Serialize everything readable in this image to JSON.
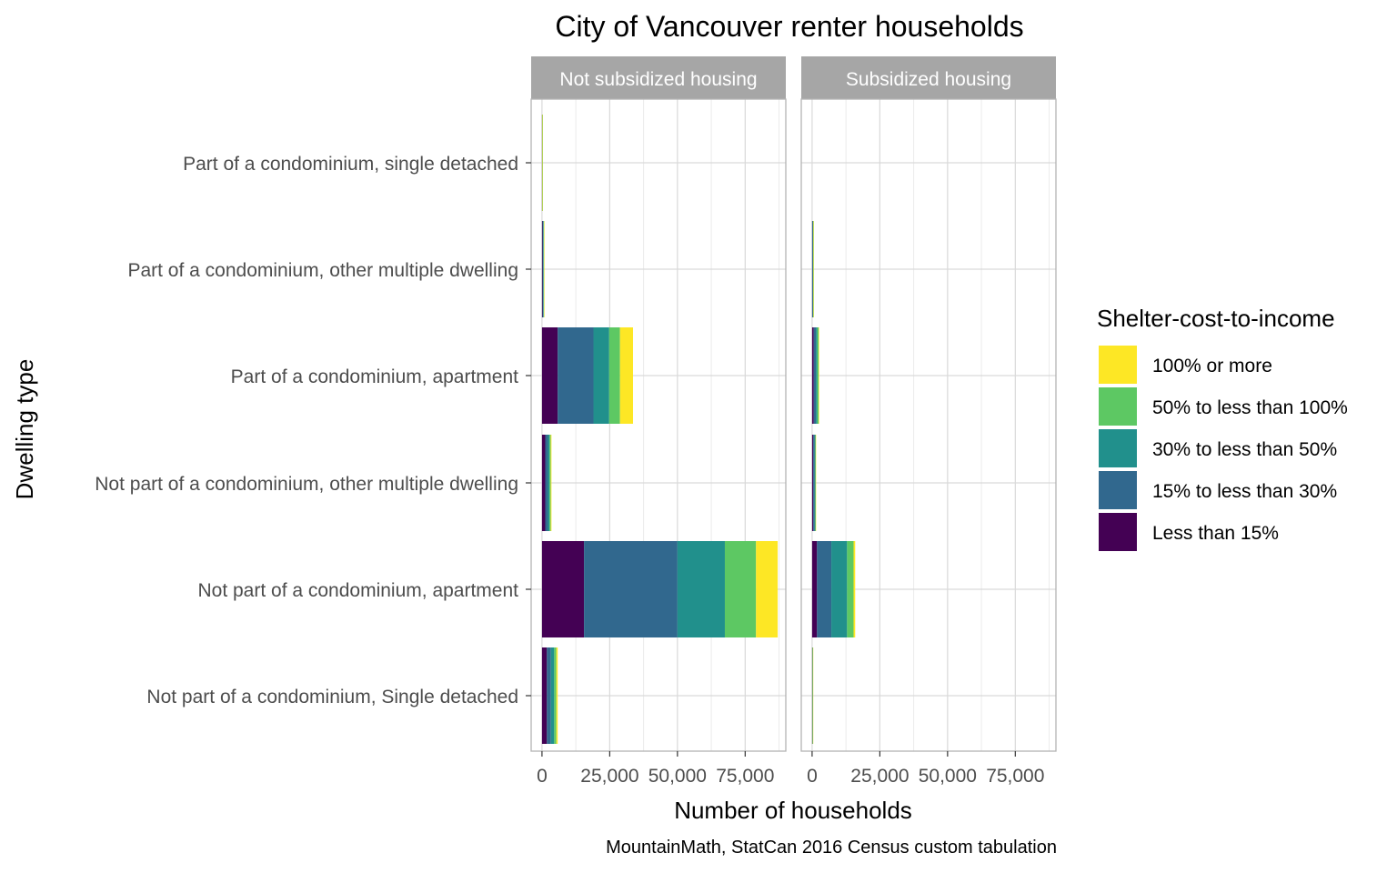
{
  "chart_data": {
    "type": "bar",
    "orientation": "horizontal",
    "stacked": true,
    "title": "City of Vancouver renter households",
    "xlabel": "Number of households",
    "ylabel": "Dwelling type",
    "caption": "MountainMath, StatCan 2016 Census custom tabulation",
    "xlim": [
      -4000,
      90000
    ],
    "x_ticks": [
      0,
      25000,
      50000,
      75000
    ],
    "x_tick_labels": [
      "0",
      "25,000",
      "50,000",
      "75,000"
    ],
    "grid": true,
    "legend_title": "Shelter-cost-to-income",
    "legend_position": "right",
    "categories": [
      "Part of a condominium, single detached",
      "Part of a condominium, other multiple dwelling",
      "Part of a condominium, apartment",
      "Not part of a condominium, other multiple dwelling",
      "Not part of a condominium, apartment",
      "Not part of a condominium, Single detached"
    ],
    "series": [
      {
        "name": "Less than 15%",
        "color": "#440154"
      },
      {
        "name": "15% to less than 30%",
        "color": "#31688E"
      },
      {
        "name": "30% to less than 50%",
        "color": "#21908C"
      },
      {
        "name": "50% to less than 100%",
        "color": "#5DC863"
      },
      {
        "name": "100% or more",
        "color": "#FDE725"
      }
    ],
    "legend_order": [
      "100% or more",
      "50% to less than 100%",
      "30% to less than 50%",
      "15% to less than 30%",
      "Less than 15%"
    ],
    "panels": [
      {
        "label": "Not subsidized housing",
        "values": [
          [
            50,
            30,
            20,
            10,
            10
          ],
          [
            200,
            250,
            200,
            100,
            150
          ],
          [
            5800,
            13200,
            5800,
            4000,
            4800
          ],
          [
            1200,
            1000,
            600,
            400,
            300
          ],
          [
            15500,
            34500,
            17500,
            11500,
            8000
          ],
          [
            1800,
            1500,
            1200,
            800,
            500
          ]
        ]
      },
      {
        "label": "Subsidized housing",
        "values": [
          [
            0,
            0,
            0,
            0,
            0
          ],
          [
            100,
            100,
            200,
            100,
            50
          ],
          [
            600,
            800,
            500,
            500,
            200
          ],
          [
            400,
            500,
            300,
            100,
            50
          ],
          [
            1800,
            5300,
            5800,
            2400,
            600
          ],
          [
            50,
            50,
            100,
            50,
            20
          ]
        ]
      }
    ]
  }
}
